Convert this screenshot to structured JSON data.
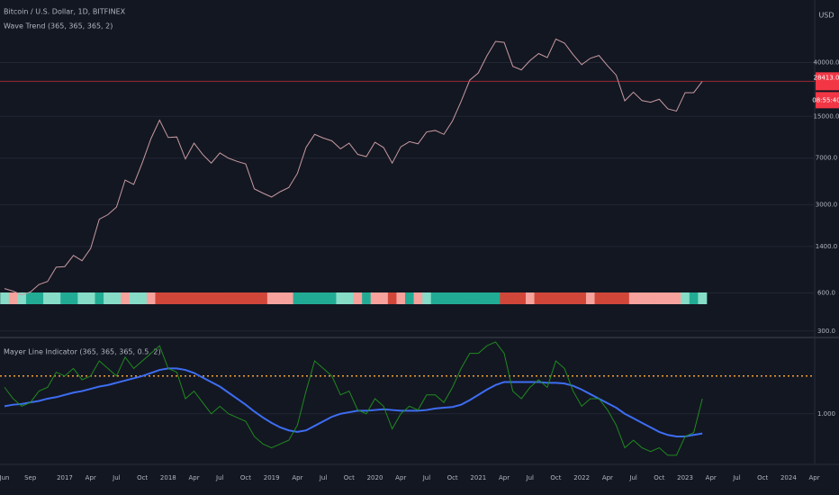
{
  "chart_data": {
    "type": "line",
    "title": "Bitcoin / U.S. Dollar, 1D, BITFINEX",
    "currency": "USD",
    "log_scale": true,
    "ylim": [
      280,
      125000
    ],
    "yticks": [
      {
        "value": 40000,
        "label": "40000.0"
      },
      {
        "value": 15000,
        "label": "15000.0"
      },
      {
        "value": 7000,
        "label": "7000.0"
      },
      {
        "value": 3000,
        "label": "3000.0"
      },
      {
        "value": 1400,
        "label": "1400.0"
      },
      {
        "value": 600,
        "label": "600.0"
      },
      {
        "value": 300,
        "label": "300.0"
      }
    ],
    "grid": true,
    "countdown": "08:55:40",
    "last_price_color": "#f23645",
    "categories": [
      "Jun",
      null,
      null,
      "Sep",
      null,
      null,
      null,
      "2017",
      null,
      null,
      "Apr",
      null,
      null,
      "Jul",
      null,
      null,
      "Oct",
      null,
      null,
      "2018",
      null,
      null,
      "Apr",
      null,
      null,
      "Jul",
      null,
      null,
      "Oct",
      null,
      null,
      "2019",
      null,
      null,
      "Apr",
      null,
      null,
      "Jul",
      null,
      null,
      "Oct",
      null,
      null,
      "2020",
      null,
      null,
      "Apr",
      null,
      null,
      "Jul",
      null,
      null,
      "Oct",
      null,
      null,
      "2021",
      null,
      null,
      "Apr",
      null,
      null,
      "Jul",
      null,
      null,
      "Oct",
      null,
      null,
      "2022",
      null,
      null,
      "Apr",
      null,
      null,
      "Jul",
      null,
      null,
      "Oct",
      null,
      null,
      "2023",
      null,
      null,
      "Apr",
      null,
      null,
      "Jul",
      null,
      null,
      "Oct",
      null,
      null,
      "2024",
      null,
      null,
      "Apr"
    ],
    "series": [
      {
        "color": "#c79aa0",
        "values": [
          650,
          620,
          580,
          610,
          700,
          740,
          960,
          970,
          1190,
          1080,
          1350,
          2300,
          2500,
          2870,
          4700,
          4340,
          6450,
          10000,
          14000,
          10200,
          10300,
          6900,
          9200,
          7500,
          6400,
          7700,
          7000,
          6600,
          6300,
          4000,
          3700,
          3450,
          3800,
          4100,
          5300,
          8500,
          10800,
          10100,
          9600,
          8300,
          9200,
          7500,
          7200,
          9350,
          8500,
          6400,
          8600,
          9450,
          9100,
          11300,
          11600,
          10800,
          13800,
          19700,
          29000,
          33100,
          45200,
          58800,
          57700,
          37300,
          35000,
          41500,
          47100,
          43800,
          61300,
          57000,
          46200,
          38500,
          43200,
          45500,
          37700,
          31800,
          19900,
          23300,
          20000,
          19400,
          20500,
          17200,
          16500,
          23100,
          23100,
          28413,
          null,
          null,
          null,
          null,
          null,
          null,
          null,
          null,
          null,
          null,
          null,
          null,
          null
        ],
        "value_labels": [
          null,
          null,
          null,
          null,
          null,
          null,
          null,
          null,
          null,
          null,
          null,
          null,
          null,
          null,
          null,
          null,
          null,
          null,
          null,
          null,
          null,
          null,
          null,
          null,
          null,
          null,
          null,
          null,
          null,
          null,
          null,
          null,
          null,
          null,
          null,
          null,
          null,
          null,
          null,
          null,
          null,
          null,
          null,
          null,
          null,
          null,
          null,
          null,
          null,
          null,
          null,
          null,
          null,
          null,
          null,
          null,
          null,
          null,
          null,
          null,
          null,
          null,
          null,
          null,
          null,
          null,
          null,
          null,
          null,
          null,
          null,
          null,
          null,
          null,
          null,
          null,
          null,
          null,
          null,
          null,
          null,
          "28413.0",
          null,
          null,
          null,
          null,
          null,
          null,
          null,
          null,
          null,
          null,
          null,
          null,
          null
        ]
      },
      {
        "color": "#3d6df2",
        "axis": "y2",
        "values": [
          1.1,
          1.12,
          1.13,
          1.15,
          1.17,
          1.2,
          1.22,
          1.25,
          1.28,
          1.3,
          1.33,
          1.36,
          1.38,
          1.41,
          1.44,
          1.47,
          1.5,
          1.54,
          1.58,
          1.6,
          1.6,
          1.58,
          1.54,
          1.48,
          1.42,
          1.36,
          1.28,
          1.2,
          1.12,
          1.03,
          0.95,
          0.88,
          0.82,
          0.78,
          0.76,
          0.78,
          0.84,
          0.9,
          0.96,
          1.0,
          1.02,
          1.04,
          1.04,
          1.05,
          1.06,
          1.05,
          1.04,
          1.04,
          1.04,
          1.05,
          1.07,
          1.08,
          1.09,
          1.12,
          1.18,
          1.25,
          1.32,
          1.38,
          1.42,
          1.42,
          1.42,
          1.42,
          1.42,
          1.41,
          1.41,
          1.4,
          1.37,
          1.32,
          1.26,
          1.2,
          1.14,
          1.08,
          1.0,
          0.94,
          0.88,
          0.82,
          0.76,
          0.72,
          0.7,
          0.7,
          0.72,
          0.74,
          null,
          null,
          null,
          null,
          null,
          null,
          null,
          null,
          null,
          null,
          null,
          null,
          null
        ]
      },
      {
        "color": "#1f8a1f",
        "axis": "y2",
        "values": [
          1.35,
          1.2,
          1.1,
          1.15,
          1.3,
          1.35,
          1.55,
          1.5,
          1.6,
          1.45,
          1.5,
          1.7,
          1.6,
          1.5,
          1.75,
          1.6,
          1.7,
          1.8,
          1.9,
          1.6,
          1.55,
          1.2,
          1.3,
          1.15,
          1.0,
          1.1,
          1.0,
          0.95,
          0.9,
          0.7,
          0.6,
          0.55,
          0.6,
          0.65,
          0.85,
          1.3,
          1.7,
          1.6,
          1.5,
          1.25,
          1.3,
          1.05,
          1.0,
          1.2,
          1.1,
          0.8,
          1.0,
          1.1,
          1.05,
          1.25,
          1.25,
          1.15,
          1.35,
          1.6,
          1.8,
          1.8,
          1.9,
          1.95,
          1.8,
          1.3,
          1.2,
          1.35,
          1.45,
          1.35,
          1.7,
          1.6,
          1.3,
          1.1,
          1.2,
          1.2,
          1.05,
          0.85,
          0.55,
          0.65,
          0.55,
          0.5,
          0.55,
          0.45,
          0.45,
          0.7,
          0.75,
          1.2,
          null,
          null,
          null,
          null,
          null,
          null,
          null,
          null,
          null,
          null,
          null,
          null,
          null
        ]
      }
    ],
    "wave_trend": {
      "title": "Wave Trend (365, 365, 365, 2)",
      "colors": [
        "#86dcc7",
        "#f7a29c",
        "#86dcc7",
        "#22ab94",
        "#22ab94",
        "#86dcc7",
        "#86dcc7",
        "#22ab94",
        "#22ab94",
        "#86dcc7",
        "#86dcc7",
        "#22ab94",
        "#86dcc7",
        "#86dcc7",
        "#f7a29c",
        "#86dcc7",
        "#86dcc7",
        "#f7a29c",
        "#d0473a",
        "#d0473a",
        "#d0473a",
        "#d0473a",
        "#d0473a",
        "#d0473a",
        "#d0473a",
        "#d0473a",
        "#d0473a",
        "#d0473a",
        "#d0473a",
        "#d0473a",
        "#d0473a",
        "#f7a29c",
        "#f7a29c",
        "#f7a29c",
        "#22ab94",
        "#22ab94",
        "#22ab94",
        "#22ab94",
        "#22ab94",
        "#86dcc7",
        "#86dcc7",
        "#f7a29c",
        "#22ab94",
        "#f7a29c",
        "#f7a29c",
        "#d0473a",
        "#f7a29c",
        "#22ab94",
        "#f7a29c",
        "#86dcc7",
        "#22ab94",
        "#22ab94",
        "#22ab94",
        "#22ab94",
        "#22ab94",
        "#22ab94",
        "#22ab94",
        "#22ab94",
        "#d0473a",
        "#d0473a",
        "#d0473a",
        "#f7a29c",
        "#d0473a",
        "#d0473a",
        "#d0473a",
        "#d0473a",
        "#d0473a",
        "#d0473a",
        "#f7a29c",
        "#d0473a",
        "#d0473a",
        "#d0473a",
        "#d0473a",
        "#f7a29c",
        "#f7a29c",
        "#f7a29c",
        "#f7a29c",
        "#f7a29c",
        "#f7a29c",
        "#86dcc7",
        "#22ab94",
        "#86dcc7"
      ]
    },
    "y2_title": "Mayer Line Indicator (365, 365, 365, 0.5, 2)",
    "y2lim": [
      0.33,
      1.95
    ],
    "y2ticks": [
      {
        "value": 1,
        "label": "1.000"
      }
    ],
    "y2_level": {
      "value": 1.5,
      "color": "#f0a030"
    }
  }
}
